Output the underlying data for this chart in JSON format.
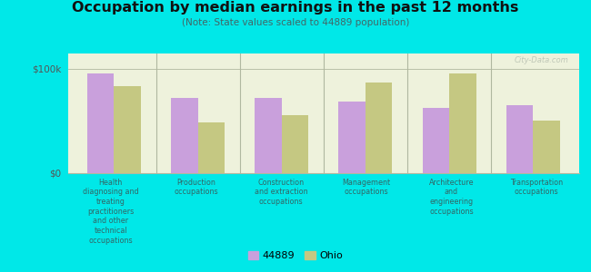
{
  "title": "Occupation by median earnings in the past 12 months",
  "subtitle": "(Note: State values scaled to 44889 population)",
  "categories": [
    "Health\ndiagnosing and\ntreating\npractitioners\nand other\ntechnical\noccupations",
    "Production\noccupations",
    "Construction\nand extraction\noccupations",
    "Management\noccupations",
    "Architecture\nand\nengineering\noccupations",
    "Transportation\noccupations"
  ],
  "values_44889": [
    95000,
    72000,
    72000,
    68000,
    62000,
    65000
  ],
  "values_ohio": [
    83000,
    48000,
    55000,
    87000,
    95000,
    50000
  ],
  "color_44889": "#c9a0dc",
  "color_ohio": "#c5c882",
  "background_outer": "#00e8e8",
  "background_plot": "#eef2dc",
  "ylabel_0": "$0",
  "ylabel_100k": "$100k",
  "ylim": [
    0,
    115000
  ],
  "yticks": [
    0,
    100000
  ],
  "ytick_labels": [
    "$0",
    "$100k"
  ],
  "legend_label_1": "44889",
  "legend_label_2": "Ohio",
  "watermark": "City-Data.com",
  "bar_width": 0.32,
  "divider_color": "#b0b8a0",
  "spine_color": "#b0b8a0"
}
